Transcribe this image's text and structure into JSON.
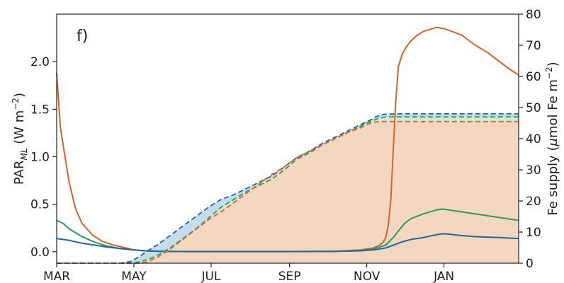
{
  "chart_data": {
    "type": "line",
    "panel_label": "f)",
    "ylabel_left": "PAR_ML (W m−2)",
    "ylabel_left_parts": {
      "main": "PAR",
      "subscript": "ML",
      "unit_open": " (W m",
      "unit_exp": "−2",
      "unit_close": ")"
    },
    "ylabel_right": "Fe supply (μmol Fe m−2)",
    "ylabel_right_parts": {
      "main": "Fe supply (",
      "mu": "μ",
      "unit": "mol Fe m",
      "unit_exp": "−2",
      "unit_close": ")"
    },
    "x_ticks": [
      {
        "label": "MAR",
        "day": 0
      },
      {
        "label": "MAY",
        "day": 61
      },
      {
        "label": "JUL",
        "day": 122
      },
      {
        "label": "SEP",
        "day": 184
      },
      {
        "label": "NOV",
        "day": 245
      },
      {
        "label": "JAN",
        "day": 306
      }
    ],
    "xlim": [
      0,
      365
    ],
    "ylim_left": [
      -0.12,
      2.5
    ],
    "yticks_left": [
      "0.0",
      "0.5",
      "1.0",
      "1.5",
      "2.0"
    ],
    "ylim_right": [
      0,
      80
    ],
    "yticks_right": [
      "0",
      "10",
      "20",
      "30",
      "40",
      "50",
      "60",
      "70",
      "80"
    ],
    "colors": {
      "orange": "#d9622b",
      "green": "#2a9b58",
      "blue": "#2166a0",
      "orange_fill": "#f3d7c1",
      "green_fill": "#cdebd8",
      "blue_fill": "#c4dceb"
    },
    "series": [
      {
        "axis": "left",
        "style": "solid",
        "color": "orange",
        "x": [
          0,
          3,
          6,
          10,
          15,
          20,
          28,
          36,
          45,
          55,
          61,
          70,
          80,
          100,
          120,
          140,
          160,
          180,
          200,
          220,
          240,
          250,
          255,
          258,
          260,
          262,
          264,
          266,
          268,
          270,
          273,
          276,
          280,
          285,
          290,
          300,
          305,
          310,
          320,
          330,
          340,
          350,
          358,
          365
        ],
        "values": [
          1.88,
          1.3,
          1.05,
          0.72,
          0.45,
          0.3,
          0.18,
          0.11,
          0.07,
          0.04,
          0.02,
          0.01,
          0.005,
          0.002,
          0.002,
          0.002,
          0.002,
          0.002,
          0.002,
          0.005,
          0.02,
          0.04,
          0.07,
          0.1,
          0.15,
          0.28,
          0.55,
          1.1,
          1.6,
          1.95,
          2.08,
          2.15,
          2.22,
          2.28,
          2.32,
          2.36,
          2.35,
          2.33,
          2.28,
          2.18,
          2.1,
          2.0,
          1.92,
          1.86
        ]
      },
      {
        "axis": "left",
        "style": "solid",
        "color": "green",
        "x": [
          0,
          5,
          10,
          20,
          30,
          40,
          50,
          61,
          70,
          80,
          100,
          140,
          180,
          220,
          240,
          250,
          260,
          266,
          270,
          275,
          280,
          290,
          300,
          305,
          310,
          320,
          330,
          340,
          350,
          365
        ],
        "values": [
          0.33,
          0.3,
          0.24,
          0.16,
          0.1,
          0.06,
          0.035,
          0.02,
          0.01,
          0.006,
          0.003,
          0.003,
          0.003,
          0.005,
          0.01,
          0.03,
          0.07,
          0.15,
          0.22,
          0.3,
          0.35,
          0.4,
          0.44,
          0.45,
          0.44,
          0.42,
          0.4,
          0.38,
          0.36,
          0.33
        ]
      },
      {
        "axis": "left",
        "style": "solid",
        "color": "blue",
        "x": [
          0,
          10,
          20,
          30,
          40,
          50,
          61,
          70,
          80,
          100,
          140,
          180,
          220,
          240,
          250,
          260,
          266,
          272,
          280,
          290,
          300,
          305,
          310,
          320,
          330,
          340,
          350,
          365
        ],
        "values": [
          0.14,
          0.12,
          0.09,
          0.07,
          0.05,
          0.035,
          0.02,
          0.01,
          0.006,
          0.003,
          0.003,
          0.003,
          0.005,
          0.01,
          0.02,
          0.04,
          0.07,
          0.1,
          0.13,
          0.15,
          0.18,
          0.19,
          0.185,
          0.17,
          0.16,
          0.155,
          0.15,
          0.14
        ]
      },
      {
        "axis": "right",
        "style": "dashed",
        "color": "blue",
        "fill": "blue_fill",
        "x": [
          0,
          50,
          58,
          65,
          72,
          80,
          90,
          100,
          110,
          120,
          130,
          140,
          150,
          160,
          170,
          180,
          190,
          200,
          210,
          220,
          230,
          240,
          248,
          252,
          258,
          270,
          280,
          300,
          320,
          340,
          365
        ],
        "values": [
          0,
          0,
          0.5,
          2,
          4,
          6,
          9,
          12,
          15,
          18,
          20.5,
          22,
          24,
          26,
          28,
          31,
          34,
          36,
          38.5,
          40.5,
          42.5,
          44.5,
          46,
          47,
          47.8,
          48,
          48,
          48,
          48,
          48,
          48
        ]
      },
      {
        "axis": "right",
        "style": "dashed",
        "color": "green",
        "fill": "green_fill",
        "x": [
          0,
          58,
          66,
          74,
          82,
          90,
          100,
          110,
          120,
          130,
          140,
          150,
          160,
          170,
          180,
          190,
          200,
          210,
          220,
          230,
          240,
          248,
          254,
          260,
          270,
          280,
          300,
          320,
          340,
          365
        ],
        "values": [
          0,
          0,
          0.5,
          1.5,
          3,
          5,
          8,
          11,
          14.5,
          18,
          20.5,
          23,
          25,
          27,
          30,
          33.5,
          35.5,
          38,
          40,
          42,
          44,
          45.5,
          46.5,
          47,
          47,
          47,
          47,
          47,
          47,
          47
        ]
      },
      {
        "axis": "right",
        "style": "dashed",
        "color": "orange",
        "fill": "orange_fill",
        "x": [
          0,
          66,
          72,
          80,
          88,
          96,
          104,
          112,
          120,
          130,
          140,
          150,
          160,
          170,
          180,
          190,
          200,
          210,
          220,
          230,
          240,
          248,
          254,
          260,
          270,
          280,
          300,
          320,
          340,
          365
        ],
        "values": [
          0,
          0,
          0.5,
          2,
          4,
          6.5,
          9,
          11.5,
          14,
          16.5,
          19.5,
          22.5,
          25.5,
          28.5,
          31,
          34,
          36,
          38,
          40,
          42,
          43.5,
          45,
          45.5,
          45.5,
          45.5,
          45.5,
          45.5,
          45.5,
          45.5,
          45.5
        ]
      }
    ]
  }
}
